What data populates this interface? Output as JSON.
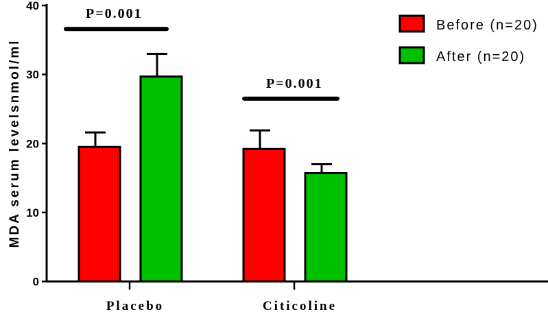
{
  "chart_data": {
    "type": "bar",
    "title": "",
    "xlabel": "",
    "ylabel": "MDA serum levelsnmol/ml",
    "ylim": [
      0,
      40
    ],
    "yticks": [
      0,
      10,
      20,
      30,
      40
    ],
    "grid": false,
    "legend_placement": "top-right",
    "categories": [
      "Placebo",
      "Citicoline"
    ],
    "series": [
      {
        "name": "Before (n=20)",
        "color": "#ff0000",
        "values": [
          19.5,
          19.2
        ],
        "error_upper": [
          21.6,
          21.9
        ]
      },
      {
        "name": "After (n=20)",
        "color": "#00c000",
        "values": [
          29.7,
          15.7
        ],
        "error_upper": [
          33.0,
          17.0
        ]
      }
    ],
    "annotations": [
      {
        "text": "P=0.001",
        "category": "Placebo",
        "level": 36.6
      },
      {
        "text": "P=0.001",
        "category": "Citicoline",
        "level": 26.5
      }
    ]
  }
}
